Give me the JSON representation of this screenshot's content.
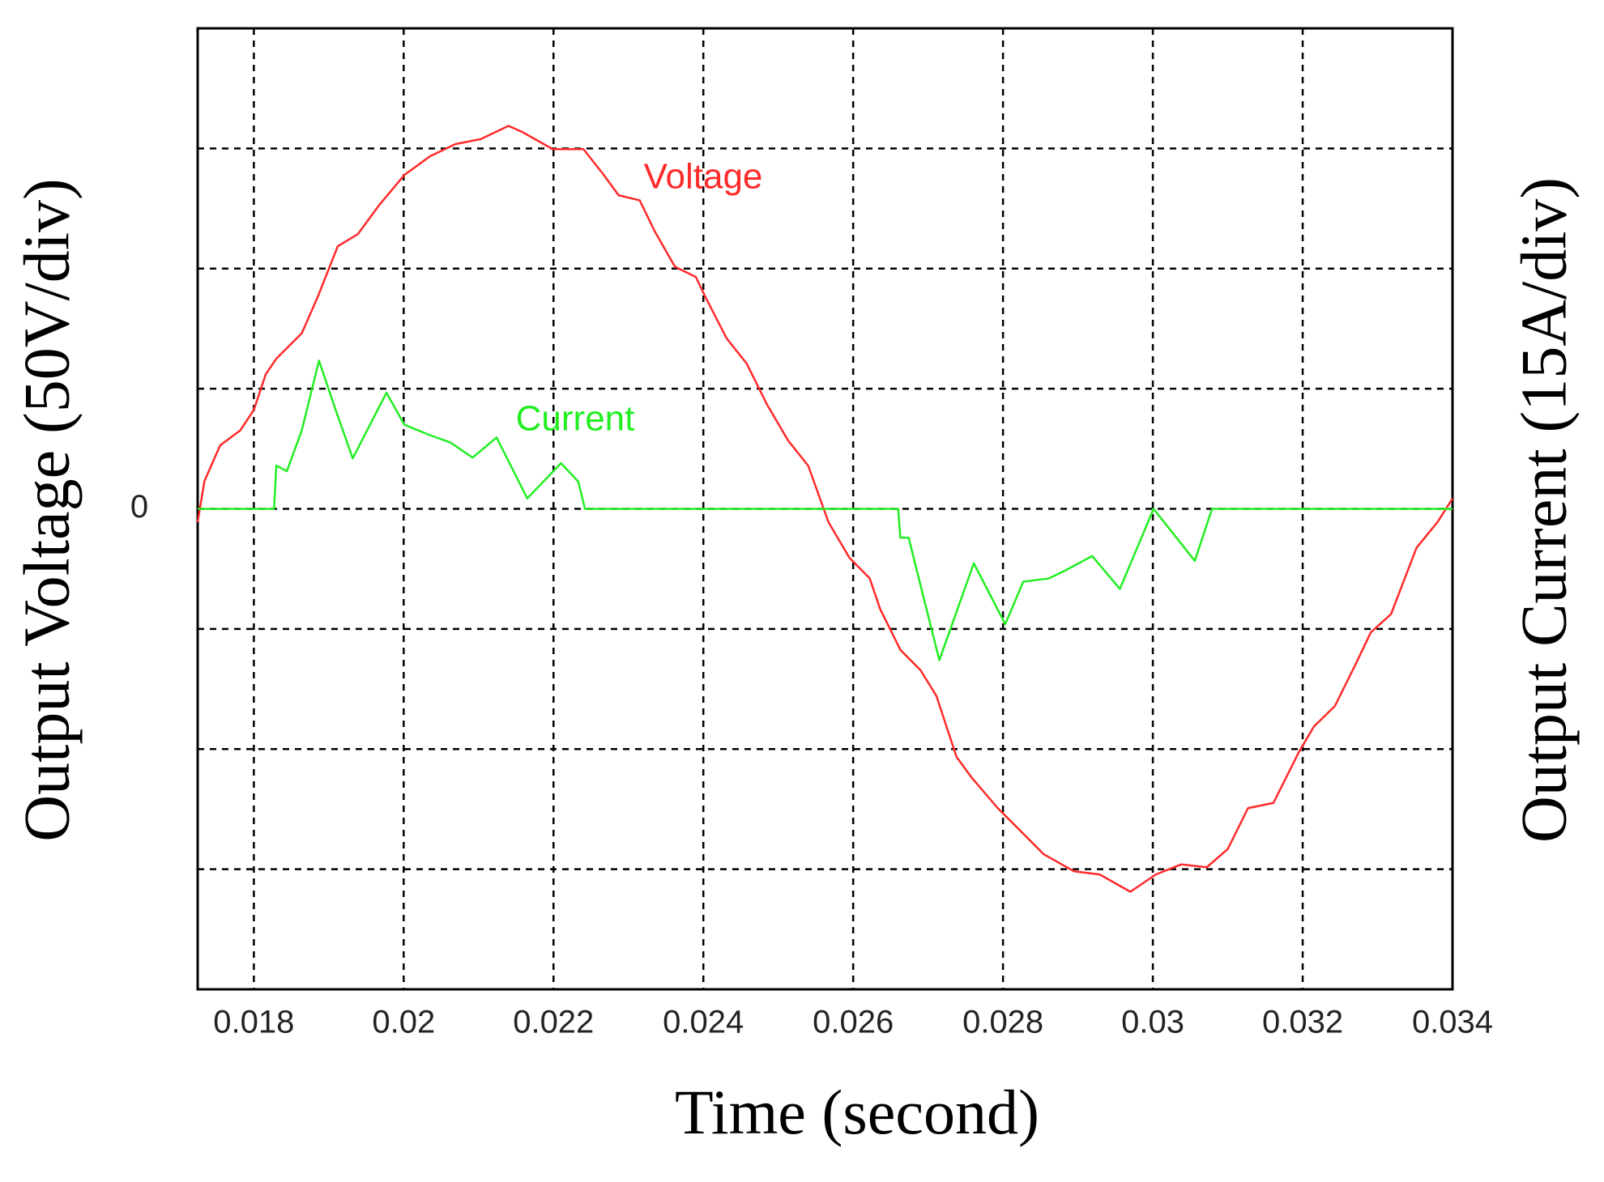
{
  "chart_data": {
    "type": "line",
    "xlabel": "Time (second)",
    "ylabel": "Output Voltage (50V/div)",
    "y2label": "Output Current (15A/div)",
    "xlim": [
      0.01725,
      0.034
    ],
    "xticks": [
      0.018,
      0.02,
      0.022,
      0.024,
      0.026,
      0.028,
      0.03,
      0.032,
      0.034
    ],
    "ylim": [
      -200,
      200
    ],
    "yticks": [
      0
    ],
    "ygrid": [
      -150,
      -100,
      -50,
      0,
      50,
      100,
      150
    ],
    "y2lim": [
      -60,
      60
    ],
    "grid": true,
    "series": [
      {
        "name": "Voltage",
        "color": "#ff2a2a",
        "axis": "y",
        "x": [
          0.01725,
          0.01734,
          0.01755,
          0.01782,
          0.018,
          0.01816,
          0.0183,
          0.01864,
          0.01885,
          0.01912,
          0.01939,
          0.01967,
          0.02001,
          0.02035,
          0.02069,
          0.02103,
          0.0214,
          0.02158,
          0.02199,
          0.0224,
          0.02267,
          0.02287,
          0.02315,
          0.02335,
          0.02362,
          0.0239,
          0.02403,
          0.02431,
          0.02458,
          0.02485,
          0.02513,
          0.0254,
          0.02567,
          0.02595,
          0.02622,
          0.02636,
          0.02663,
          0.0269,
          0.02711,
          0.02738,
          0.02758,
          0.02793,
          0.02827,
          0.02854,
          0.02895,
          0.02929,
          0.0297,
          0.03004,
          0.03038,
          0.03072,
          0.031,
          0.03127,
          0.03161,
          0.03195,
          0.03215,
          0.03243,
          0.0327,
          0.03291,
          0.03318,
          0.03352,
          0.0338,
          0.034
        ],
        "values": [
          -5.5,
          11.5,
          26.4,
          32.7,
          41.2,
          56.1,
          62.5,
          73.1,
          88.0,
          109.3,
          114.4,
          126.3,
          139.0,
          146.7,
          151.8,
          153.9,
          159.4,
          156.9,
          149.7,
          149.7,
          139.0,
          130.5,
          128.4,
          115.6,
          100.8,
          96.5,
          88.0,
          71.0,
          60.4,
          43.4,
          28.5,
          17.9,
          -5.5,
          -20.4,
          -28.9,
          -41.7,
          -58.7,
          -67.2,
          -77.8,
          -103.3,
          -111.8,
          -124.6,
          -135.2,
          -143.7,
          -150.9,
          -152.2,
          -159.4,
          -152.2,
          -148.0,
          -149.2,
          -141.6,
          -124.6,
          -122.4,
          -101.2,
          -90.6,
          -82.1,
          -65.1,
          -51.4,
          -43.8,
          -16.2,
          -5.5,
          4.3
        ]
      },
      {
        "name": "Current",
        "color": "#22ee22",
        "axis": "y2",
        "x": [
          0.01725,
          0.01827,
          0.0183,
          0.01844,
          0.01864,
          0.01887,
          0.01909,
          0.01932,
          0.01977,
          0.02001,
          0.02035,
          0.02062,
          0.02092,
          0.02124,
          0.02165,
          0.0221,
          0.02233,
          0.02242,
          0.0266,
          0.02663,
          0.02674,
          0.02715,
          0.02761,
          0.02803,
          0.02827,
          0.02861,
          0.02881,
          0.02919,
          0.02956,
          0.03001,
          0.03056,
          0.03079,
          0.034
        ],
        "values": [
          0,
          0,
          5.4,
          4.7,
          9.8,
          18.5,
          12.4,
          6.3,
          14.5,
          10.5,
          9.2,
          8.3,
          6.4,
          8.9,
          1.3,
          5.7,
          3.4,
          0,
          0,
          -3.6,
          -3.6,
          -18.9,
          -6.8,
          -14.4,
          -9.1,
          -8.7,
          -7.8,
          -5.9,
          -10.0,
          0,
          -6.5,
          0,
          0
        ]
      }
    ]
  }
}
